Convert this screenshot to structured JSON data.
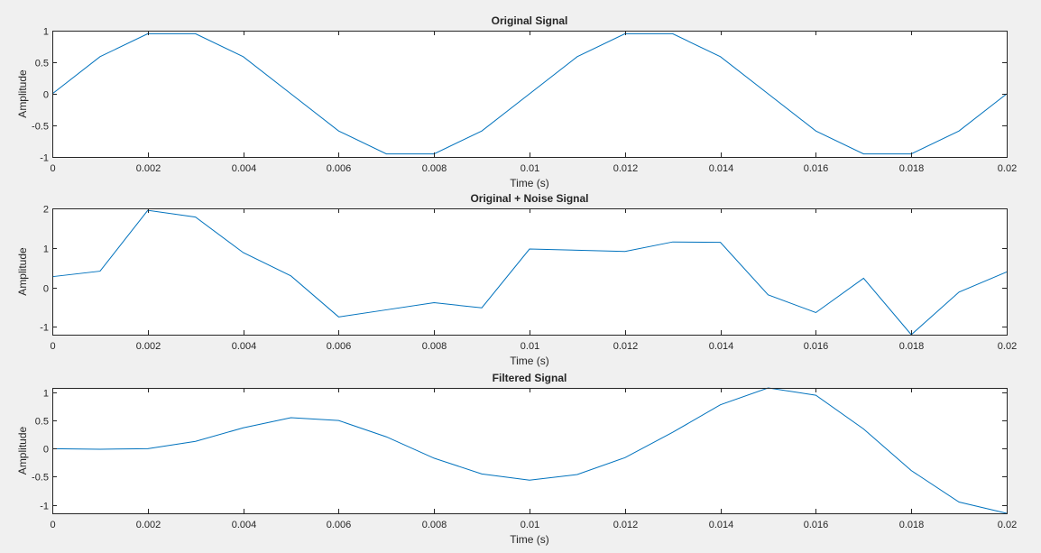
{
  "figure": {
    "background": "#f0f0f0",
    "line_color": "#0072bd",
    "axes_color": "#262626"
  },
  "chart_data": [
    {
      "type": "line",
      "title": "Original Signal",
      "xlabel": "Time (s)",
      "ylabel": "Amplitude",
      "xlim": [
        0,
        0.02
      ],
      "ylim": [
        -1,
        1
      ],
      "grid": false,
      "xticks": [
        0,
        0.002,
        0.004,
        0.006,
        0.008,
        0.01,
        0.012,
        0.014,
        0.016,
        0.018,
        0.02
      ],
      "xtick_labels": [
        "0",
        "0.002",
        "0.004",
        "0.006",
        "0.008",
        "0.01",
        "0.012",
        "0.014",
        "0.016",
        "0.018",
        "0.02"
      ],
      "yticks": [
        -1,
        -0.5,
        0,
        0.5,
        1
      ],
      "ytick_labels": [
        "-1",
        "-0.5",
        "0",
        "0.5",
        "1"
      ],
      "series": [
        {
          "x": [
            0,
            0.001,
            0.002,
            0.003,
            0.004,
            0.005,
            0.006,
            0.007,
            0.008,
            0.009,
            0.01,
            0.011,
            0.012,
            0.013,
            0.014,
            0.015,
            0.016,
            0.017,
            0.018,
            0.019,
            0.02
          ],
          "y": [
            0,
            0.588,
            0.951,
            0.951,
            0.588,
            0,
            -0.588,
            -0.951,
            -0.951,
            -0.588,
            0,
            0.588,
            0.951,
            0.951,
            0.588,
            0,
            -0.588,
            -0.951,
            -0.951,
            -0.588,
            0
          ]
        }
      ]
    },
    {
      "type": "line",
      "title": "Original + Noise Signal",
      "xlabel": "Time (s)",
      "ylabel": "Amplitude",
      "xlim": [
        0,
        0.02
      ],
      "ylim": [
        -1.2,
        2
      ],
      "grid": false,
      "xticks": [
        0,
        0.002,
        0.004,
        0.006,
        0.008,
        0.01,
        0.012,
        0.014,
        0.016,
        0.018,
        0.02
      ],
      "xtick_labels": [
        "0",
        "0.002",
        "0.004",
        "0.006",
        "0.008",
        "0.01",
        "0.012",
        "0.014",
        "0.016",
        "0.018",
        "0.02"
      ],
      "yticks": [
        -1,
        0,
        1,
        2
      ],
      "ytick_labels": [
        "-1",
        "0",
        "1",
        "2"
      ],
      "series": [
        {
          "x": [
            0,
            0.001,
            0.002,
            0.003,
            0.004,
            0.005,
            0.006,
            0.007,
            0.008,
            0.009,
            0.01,
            0.011,
            0.012,
            0.013,
            0.014,
            0.015,
            0.016,
            0.017,
            0.018,
            0.019,
            0.02
          ],
          "y": [
            0.27,
            0.41,
            1.95,
            1.78,
            0.88,
            0.29,
            -0.75,
            -0.57,
            -0.39,
            -0.52,
            0.97,
            0.94,
            0.91,
            1.15,
            1.14,
            -0.19,
            -0.64,
            0.23,
            -1.2,
            -0.12,
            0.39
          ]
        }
      ]
    },
    {
      "type": "line",
      "title": "Filtered Signal",
      "xlabel": "Time (s)",
      "ylabel": "Amplitude",
      "xlim": [
        0,
        0.02
      ],
      "ylim": [
        -1.15,
        1.08
      ],
      "grid": false,
      "xticks": [
        0,
        0.002,
        0.004,
        0.006,
        0.008,
        0.01,
        0.012,
        0.014,
        0.016,
        0.018,
        0.02
      ],
      "xtick_labels": [
        "0",
        "0.002",
        "0.004",
        "0.006",
        "0.008",
        "0.01",
        "0.012",
        "0.014",
        "0.016",
        "0.018",
        "0.02"
      ],
      "yticks": [
        -1,
        -0.5,
        0,
        0.5,
        1
      ],
      "ytick_labels": [
        "-1",
        "-0.5",
        "0",
        "0.5",
        "1"
      ],
      "series": [
        {
          "x": [
            0,
            0.001,
            0.002,
            0.003,
            0.004,
            0.005,
            0.006,
            0.007,
            0.008,
            0.009,
            0.01,
            0.011,
            0.012,
            0.013,
            0.014,
            0.015,
            0.016,
            0.017,
            0.018,
            0.019,
            0.02
          ],
          "y": [
            0,
            -0.01,
            0,
            0.13,
            0.37,
            0.55,
            0.5,
            0.21,
            -0.17,
            -0.45,
            -0.56,
            -0.46,
            -0.16,
            0.29,
            0.78,
            1.08,
            0.95,
            0.35,
            -0.39,
            -0.95,
            -1.15
          ]
        }
      ]
    }
  ]
}
